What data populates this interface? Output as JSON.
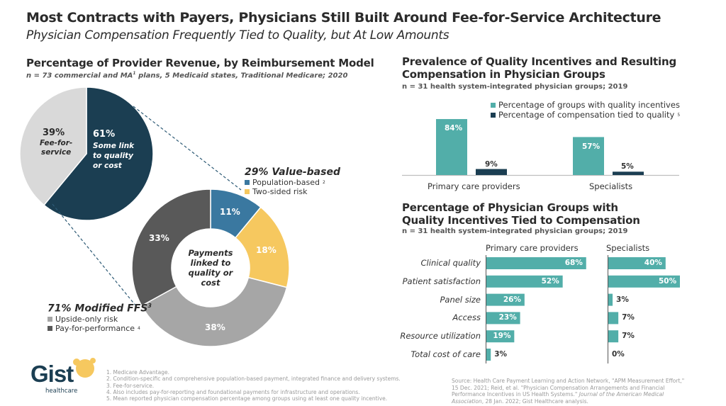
{
  "header": {
    "title": "Most Contracts with Payers, Physicians Still Built Around Fee-for-Service Architecture",
    "subtitle": "Physician Compensation Frequently Tied to Quality, but At Low Amounts"
  },
  "colors": {
    "navy": "#1b3e52",
    "light_gray": "#d9d9d9",
    "blue": "#3a78a0",
    "yellow": "#f6c85f",
    "mid_gray": "#a6a6a6",
    "dark_gray": "#595959",
    "teal": "#52aea9",
    "dashed_line": "#2d5a75"
  },
  "chart_data": [
    {
      "id": "provider-revenue-pie",
      "type": "pie",
      "title": "Percentage of Provider Revenue, by Reimbursement Model",
      "subtitle_pre": "n = 73 commercial and MA",
      "subtitle_sup": "1",
      "subtitle_post": " plans, 5 Medicaid states, Traditional Medicare; 2020",
      "slices": [
        {
          "label_pct": "61%",
          "label_lines": [
            "Some link",
            "to quality",
            "or cost"
          ],
          "value": 61,
          "color": "#1b3e52"
        },
        {
          "label_pct": "39%",
          "label_lines": [
            "Fee-for-",
            "service"
          ],
          "value": 39,
          "color": "#d9d9d9"
        }
      ]
    },
    {
      "id": "payments-linked-donut",
      "type": "pie",
      "center_label": [
        "Payments",
        "linked to",
        "quality or",
        "cost"
      ],
      "slices": [
        {
          "name": "Population-based",
          "value": 11,
          "label": "11%",
          "color": "#3a78a0"
        },
        {
          "name": "Two-sided risk",
          "value": 18,
          "label": "18%",
          "color": "#f6c85f"
        },
        {
          "name": "Upside-only risk",
          "value": 38,
          "label": "38%",
          "color": "#a6a6a6"
        },
        {
          "name": "Pay-for-performance",
          "value": 33,
          "label": "33%",
          "color": "#595959"
        }
      ],
      "legends": [
        {
          "title": "29% Value-based",
          "items": [
            {
              "label": "Population-based",
              "sup": "2",
              "color": "#3a78a0"
            },
            {
              "label": "Two-sided risk",
              "sup": "",
              "color": "#f6c85f"
            }
          ]
        },
        {
          "title": "71% Modified FFS",
          "title_sup": "3",
          "items": [
            {
              "label": "Upside-only risk",
              "sup": "",
              "color": "#a6a6a6"
            },
            {
              "label": "Pay-for-performance",
              "sup": "4",
              "color": "#595959"
            }
          ]
        }
      ]
    },
    {
      "id": "quality-incentives-bar",
      "type": "bar",
      "title_lines": [
        "Prevalence of Quality Incentives and Resulting",
        "Compensation in Physician Groups"
      ],
      "subtitle": "n = 31 health system-integrated physician groups; 2019",
      "categories": [
        "Primary care providers",
        "Specialists"
      ],
      "series": [
        {
          "name": "Percentage of groups with quality incentives",
          "sup": "",
          "color": "#52aea9",
          "values": [
            84,
            57
          ],
          "labels": [
            "84%",
            "57%"
          ]
        },
        {
          "name": "Percentage of compensation tied to quality",
          "sup": "5",
          "color": "#1b3e52",
          "values": [
            9,
            5
          ],
          "labels": [
            "9%",
            "5%"
          ]
        }
      ],
      "ylim": [
        0,
        100
      ],
      "legend": "top-right"
    },
    {
      "id": "incentive-types-bar",
      "type": "bar",
      "orientation": "horizontal",
      "title_lines": [
        "Percentage of Physician Groups with",
        "Quality Incentives Tied to Compensation"
      ],
      "subtitle": "n = 31 health system-integrated physician groups; 2019",
      "categories": [
        "Clinical quality",
        "Patient satisfaction",
        "Panel size",
        "Access",
        "Resource utilization",
        "Total cost of care"
      ],
      "series": [
        {
          "name": "Primary care providers",
          "color": "#52aea9",
          "values": [
            68,
            52,
            26,
            23,
            19,
            3
          ],
          "labels": [
            "68%",
            "52%",
            "26%",
            "23%",
            "19%",
            "3%"
          ]
        },
        {
          "name": "Specialists",
          "color": "#52aea9",
          "values": [
            40,
            50,
            3,
            7,
            7,
            0
          ],
          "labels": [
            "40%",
            "50%",
            "3%",
            "7%",
            "7%",
            "0%"
          ]
        }
      ]
    }
  ],
  "footnotes": [
    "1. Medicare Advantage.",
    "2. Condition-specific and comprehensive population-based payment, integrated finance and delivery systems.",
    "3. Fee-for-service.",
    "4. Also includes pay-for-reporting and foundational payments for infrastructure and operations.",
    "5. Mean reported physician compensation percentage among groups using at least one quality incentive."
  ],
  "source": {
    "pre": "Source: Health Care Payment Learning and Action Network, \"APM Measurement Effort,\" 15 Dec. 2021; Reid, et al. \"Physician Compensation Arrangements and Financial Performance Incentives in US Health Systems.\" ",
    "journal": "Journal of the American Medical Association",
    "post": ", 28 Jan. 2022; Gist Healthcare analysis."
  },
  "logo": {
    "word": "Gist",
    "sub": "healthcare"
  }
}
